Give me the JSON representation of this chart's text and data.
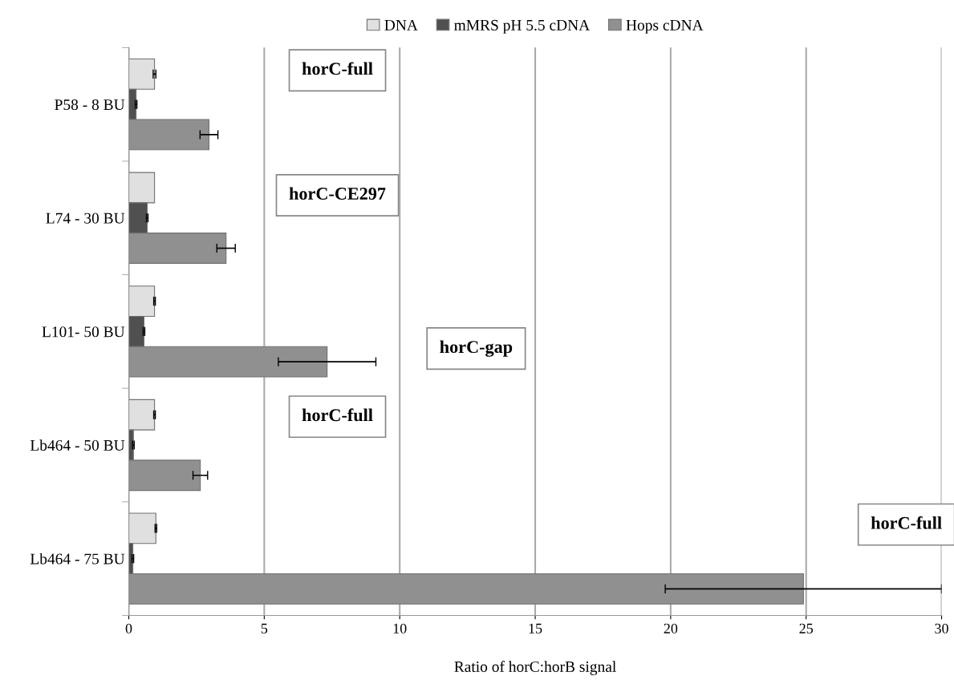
{
  "chart_data": {
    "type": "bar",
    "orientation": "horizontal",
    "categories": [
      "P58 - 8 BU",
      "L74 - 30 BU",
      "L101- 50 BU",
      "Lb464 - 50 BU",
      "Lb464 - 75 BU"
    ],
    "series": [
      {
        "name": "DNA",
        "color": "#e0e0e0",
        "values": [
          0.95,
          0.95,
          0.95,
          0.95,
          1.0
        ],
        "errors": [
          0.05,
          null,
          0.03,
          0.03,
          0.03
        ]
      },
      {
        "name": "mMRS pH 5.5 cDNA",
        "color": "#505050",
        "values": [
          0.27,
          0.68,
          0.56,
          0.17,
          0.15
        ],
        "errors": [
          0.03,
          0.03,
          0.03,
          0.03,
          0.03
        ]
      },
      {
        "name": "Hops cDNA",
        "color": "#909090",
        "values": [
          2.96,
          3.59,
          7.32,
          2.64,
          24.9
        ],
        "errors": [
          0.33,
          0.34,
          1.8,
          0.27,
          5.1
        ]
      }
    ],
    "xlim": [
      0,
      30
    ],
    "xticks": [
      0,
      5,
      10,
      15,
      20,
      25,
      30
    ],
    "xlabel": "Ratio of horC:horB signal",
    "annotations": [
      "horC-full",
      "horC-CE297",
      "horC-gap",
      "horC-full",
      "horC-full"
    ],
    "grid": "x",
    "legend": "top"
  }
}
